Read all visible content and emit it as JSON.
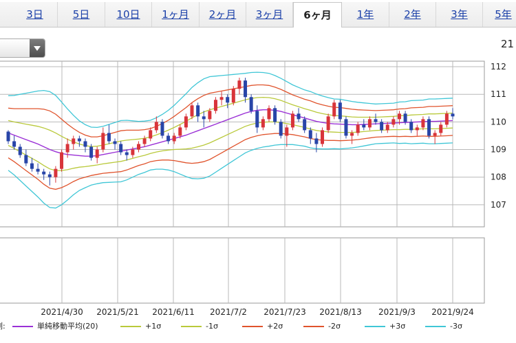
{
  "tabs": [
    {
      "label": "3日",
      "active": false
    },
    {
      "label": "5日",
      "active": false
    },
    {
      "label": "10日",
      "active": false
    },
    {
      "label": "1ヶ月",
      "active": false
    },
    {
      "label": "2ヶ月",
      "active": false
    },
    {
      "label": "3ヶ月",
      "active": false
    },
    {
      "label": "6ヶ月",
      "active": true
    },
    {
      "label": "1年",
      "active": false
    },
    {
      "label": "2年",
      "active": false
    },
    {
      "label": "3年",
      "active": false
    },
    {
      "label": "5年",
      "active": false
    }
  ],
  "corner_value": "21",
  "legend": {
    "prefix": "凡例:",
    "items": [
      {
        "label": "単純移動平均(20)",
        "color": "#9a2fd6"
      },
      {
        "label": "+1σ",
        "color": "#b9c93a"
      },
      {
        "label": "-1σ",
        "color": "#b9c93a"
      },
      {
        "label": "+2σ",
        "color": "#e0532c"
      },
      {
        "label": "-2σ",
        "color": "#e0532c"
      },
      {
        "label": "+3σ",
        "color": "#3fc6d6"
      },
      {
        "label": "-3σ",
        "color": "#3fc6d6"
      }
    ]
  },
  "chart_data": {
    "type": "candlestick",
    "y_ticks": [
      "112",
      "111",
      "110",
      "109",
      "108",
      "107"
    ],
    "ylim": [
      106.2,
      112.2
    ],
    "x_ticks": [
      "2021/4/30",
      "2021/5/21",
      "2021/6/11",
      "2021/7/2",
      "2021/7/23",
      "2021/8/13",
      "2021/9/3",
      "2021/9/24"
    ],
    "colors": {
      "up": "#d8343a",
      "down": "#2845a8",
      "grid": "#b8b8b8"
    },
    "candles": [
      [
        109.65,
        109.7,
        109.2,
        109.3
      ],
      [
        109.3,
        109.5,
        109.0,
        109.1
      ],
      [
        109.1,
        109.2,
        108.7,
        108.8
      ],
      [
        108.8,
        109.0,
        108.4,
        108.5
      ],
      [
        108.5,
        108.7,
        108.2,
        108.3
      ],
      [
        108.3,
        108.5,
        108.1,
        108.2
      ],
      [
        108.2,
        108.3,
        107.9,
        108.1
      ],
      [
        108.1,
        108.2,
        107.7,
        108.0
      ],
      [
        108.0,
        108.4,
        107.8,
        108.3
      ],
      [
        108.3,
        109.0,
        108.2,
        108.9
      ],
      [
        108.9,
        109.4,
        108.7,
        109.2
      ],
      [
        109.2,
        109.5,
        109.0,
        109.4
      ],
      [
        109.4,
        109.5,
        109.1,
        109.3
      ],
      [
        109.3,
        109.4,
        108.9,
        109.1
      ],
      [
        109.1,
        109.2,
        108.6,
        108.7
      ],
      [
        108.7,
        109.1,
        108.5,
        109.0
      ],
      [
        109.0,
        109.8,
        108.9,
        109.6
      ],
      [
        109.6,
        109.9,
        109.2,
        109.3
      ],
      [
        109.3,
        109.4,
        109.0,
        109.2
      ],
      [
        109.2,
        109.3,
        108.8,
        108.9
      ],
      [
        108.9,
        109.0,
        108.6,
        108.8
      ],
      [
        108.8,
        109.1,
        108.7,
        109.0
      ],
      [
        109.0,
        109.3,
        108.9,
        109.2
      ],
      [
        109.2,
        109.5,
        109.1,
        109.4
      ],
      [
        109.4,
        109.8,
        109.3,
        109.7
      ],
      [
        109.7,
        110.2,
        109.6,
        110.0
      ],
      [
        110.0,
        110.1,
        109.4,
        109.5
      ],
      [
        109.5,
        109.6,
        109.2,
        109.3
      ],
      [
        109.3,
        109.6,
        109.2,
        109.5
      ],
      [
        109.5,
        109.9,
        109.4,
        109.8
      ],
      [
        109.8,
        110.3,
        109.7,
        110.2
      ],
      [
        110.2,
        110.7,
        110.1,
        110.6
      ],
      [
        110.6,
        110.7,
        110.0,
        110.2
      ],
      [
        110.2,
        110.4,
        109.8,
        110.1
      ],
      [
        110.1,
        110.5,
        110.0,
        110.4
      ],
      [
        110.4,
        110.9,
        110.3,
        110.8
      ],
      [
        110.8,
        111.1,
        110.6,
        110.9
      ],
      [
        110.9,
        111.0,
        110.5,
        110.7
      ],
      [
        110.7,
        111.3,
        110.6,
        111.2
      ],
      [
        111.2,
        111.6,
        111.0,
        111.5
      ],
      [
        111.5,
        111.6,
        110.7,
        110.9
      ],
      [
        110.9,
        111.0,
        110.3,
        110.4
      ],
      [
        110.4,
        110.6,
        109.6,
        109.8
      ],
      [
        109.8,
        110.2,
        109.7,
        110.1
      ],
      [
        110.1,
        110.6,
        110.0,
        110.5
      ],
      [
        110.5,
        110.6,
        109.9,
        110.0
      ],
      [
        110.0,
        110.1,
        109.4,
        109.5
      ],
      [
        109.5,
        109.9,
        109.1,
        109.8
      ],
      [
        109.8,
        110.4,
        109.7,
        110.3
      ],
      [
        110.3,
        110.5,
        110.0,
        110.1
      ],
      [
        110.1,
        110.2,
        109.6,
        109.7
      ],
      [
        109.7,
        109.8,
        109.2,
        109.4
      ],
      [
        109.4,
        109.6,
        108.9,
        109.2
      ],
      [
        109.2,
        109.8,
        109.1,
        109.7
      ],
      [
        109.7,
        110.3,
        109.6,
        110.2
      ],
      [
        110.2,
        110.8,
        110.1,
        110.7
      ],
      [
        110.7,
        110.8,
        110.0,
        110.1
      ],
      [
        110.1,
        110.2,
        109.4,
        109.5
      ],
      [
        109.5,
        109.7,
        109.2,
        109.6
      ],
      [
        109.6,
        110.0,
        109.5,
        109.9
      ],
      [
        109.9,
        110.1,
        109.7,
        109.8
      ],
      [
        109.8,
        110.2,
        109.7,
        110.1
      ],
      [
        110.1,
        110.3,
        109.9,
        110.0
      ],
      [
        110.0,
        110.1,
        109.6,
        109.7
      ],
      [
        109.7,
        110.0,
        109.6,
        109.9
      ],
      [
        109.9,
        110.2,
        109.8,
        110.1
      ],
      [
        110.1,
        110.4,
        109.9,
        110.3
      ],
      [
        110.3,
        110.4,
        109.9,
        110.0
      ],
      [
        110.0,
        110.1,
        109.6,
        109.7
      ],
      [
        109.7,
        109.9,
        109.5,
        109.8
      ],
      [
        109.8,
        110.2,
        109.7,
        110.1
      ],
      [
        110.1,
        110.2,
        109.4,
        109.5
      ],
      [
        109.5,
        109.7,
        109.2,
        109.6
      ],
      [
        109.6,
        110.0,
        109.5,
        109.9
      ],
      [
        109.9,
        110.4,
        109.8,
        110.3
      ],
      [
        110.3,
        110.5,
        110.1,
        110.2
      ]
    ],
    "sma20": [
      109.6,
      109.52,
      109.44,
      109.36,
      109.28,
      109.2,
      109.1,
      109.0,
      108.92,
      108.86,
      108.82,
      108.8,
      108.78,
      108.76,
      108.76,
      108.78,
      108.82,
      108.86,
      108.9,
      108.94,
      108.98,
      109.02,
      109.06,
      109.1,
      109.16,
      109.22,
      109.28,
      109.34,
      109.4,
      109.46,
      109.52,
      109.6,
      109.68,
      109.76,
      109.84,
      109.92,
      110.0,
      110.08,
      110.16,
      110.24,
      110.32,
      110.38,
      110.42,
      110.44,
      110.44,
      110.42,
      110.38,
      110.32,
      110.26,
      110.2,
      110.14,
      110.08,
      110.02,
      109.98,
      109.95,
      109.93,
      109.92,
      109.91,
      109.9,
      109.9,
      109.91,
      109.92,
      109.93,
      109.94,
      109.95,
      109.96,
      109.97,
      109.98,
      109.99,
      110.0,
      110.01,
      110.02,
      110.02,
      110.03,
      110.04,
      110.05
    ],
    "sigma": [
      0.45,
      0.48,
      0.52,
      0.56,
      0.6,
      0.64,
      0.68,
      0.7,
      0.68,
      0.62,
      0.55,
      0.48,
      0.42,
      0.38,
      0.35,
      0.34,
      0.34,
      0.35,
      0.36,
      0.37,
      0.36,
      0.34,
      0.32,
      0.31,
      0.3,
      0.31,
      0.33,
      0.36,
      0.4,
      0.45,
      0.5,
      0.55,
      0.58,
      0.6,
      0.6,
      0.58,
      0.56,
      0.54,
      0.52,
      0.5,
      0.48,
      0.47,
      0.46,
      0.45,
      0.44,
      0.42,
      0.4,
      0.38,
      0.36,
      0.35,
      0.34,
      0.34,
      0.33,
      0.32,
      0.31,
      0.3,
      0.3,
      0.29,
      0.28,
      0.27,
      0.26,
      0.25,
      0.24,
      0.24,
      0.24,
      0.24,
      0.25,
      0.25,
      0.26,
      0.26,
      0.26,
      0.27,
      0.27,
      0.27,
      0.27,
      0.27
    ]
  }
}
